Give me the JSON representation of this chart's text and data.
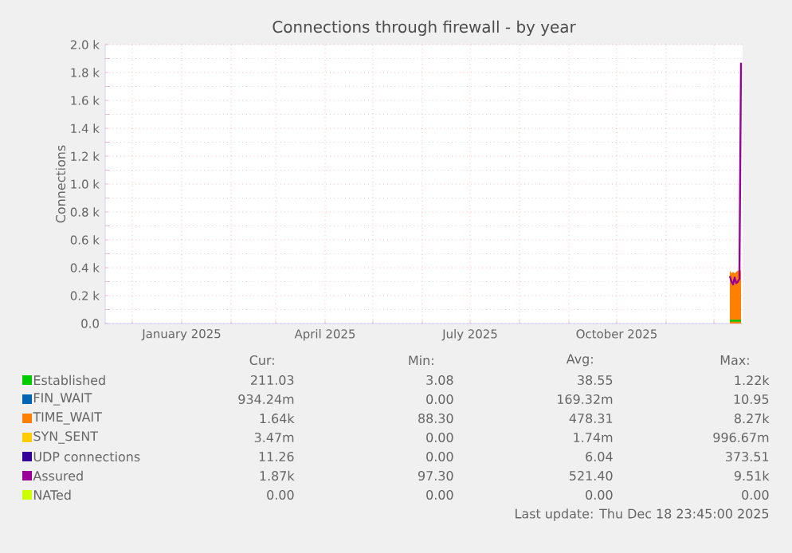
{
  "chart_data": {
    "type": "line",
    "title": "Connections through firewall - by year",
    "ylabel": "Connections",
    "x": [
      "2025-12-11",
      "2025-12-12",
      "2025-12-13",
      "2025-12-14",
      "2025-12-15",
      "2025-12-16",
      "2025-12-17",
      "2025-12-18"
    ],
    "xlim": [
      "2024-11-14",
      "2025-12-19"
    ],
    "xticks": [
      {
        "value": "2024-12-01",
        "label": null
      },
      {
        "value": "2025-01-01",
        "label": "January 2025"
      },
      {
        "value": "2025-02-01",
        "label": null
      },
      {
        "value": "2025-03-01",
        "label": null
      },
      {
        "value": "2025-04-01",
        "label": "April 2025"
      },
      {
        "value": "2025-05-01",
        "label": null
      },
      {
        "value": "2025-06-01",
        "label": null
      },
      {
        "value": "2025-07-01",
        "label": "July 2025"
      },
      {
        "value": "2025-08-01",
        "label": null
      },
      {
        "value": "2025-09-01",
        "label": null
      },
      {
        "value": "2025-10-01",
        "label": "October 2025"
      },
      {
        "value": "2025-11-01",
        "label": null
      },
      {
        "value": "2025-12-01",
        "label": null
      }
    ],
    "ylim": [
      0,
      2000
    ],
    "yticks": [
      {
        "value": 0,
        "label": "0.0"
      },
      {
        "value": 200,
        "label": "0.2 k"
      },
      {
        "value": 400,
        "label": "0.4 k"
      },
      {
        "value": 600,
        "label": "0.6 k"
      },
      {
        "value": 800,
        "label": "0.8 k"
      },
      {
        "value": 1000,
        "label": "1.0 k"
      },
      {
        "value": 1200,
        "label": "1.2 k"
      },
      {
        "value": 1400,
        "label": "1.4 k"
      },
      {
        "value": 1600,
        "label": "1.6 k"
      },
      {
        "value": 1800,
        "label": "1.8 k"
      },
      {
        "value": 2000,
        "label": "2.0 k"
      }
    ],
    "grid": true,
    "legend": "bottom",
    "series": [
      {
        "name": "Established",
        "color": "#00cc00",
        "values": [
          20,
          20,
          20,
          20,
          20,
          20,
          20,
          20
        ]
      },
      {
        "name": "FIN_WAIT",
        "color": "#0066b3",
        "values": [
          null,
          null,
          null,
          null,
          null,
          null,
          null,
          null
        ]
      },
      {
        "name": "TIME_WAIT",
        "color": "#ff8000",
        "type": "area",
        "values": [
          380,
          360,
          370,
          360,
          370,
          380,
          380,
          380
        ]
      },
      {
        "name": "SYN_SENT",
        "color": "#ffcc00",
        "values": [
          null,
          null,
          null,
          null,
          null,
          null,
          null,
          null
        ]
      },
      {
        "name": "UDP connections",
        "color": "#330099",
        "values": [
          null,
          null,
          null,
          null,
          null,
          null,
          null,
          null
        ]
      },
      {
        "name": "Assured",
        "color": "#990099",
        "values": [
          340,
          300,
          280,
          330,
          290,
          300,
          320,
          1870
        ]
      },
      {
        "name": "NATed",
        "color": "#ccff00",
        "values": [
          null,
          null,
          null,
          null,
          null,
          null,
          null,
          null
        ]
      }
    ],
    "annotations": [
      "Cur:",
      "Min:",
      "Avg:",
      "Max:",
      "211.03",
      "3.08",
      "38.55",
      "1.22k",
      "934.24m",
      "0.00",
      "169.32m",
      "10.95",
      "1.64k",
      "88.30",
      "478.31",
      "8.27k",
      "3.47m",
      "0.00",
      "1.74m",
      "996.67m",
      "11.26",
      "0.00",
      "6.04",
      "373.51",
      "1.87k",
      "97.30",
      "521.40",
      "9.51k",
      "0.00",
      "0.00",
      "0.00",
      "0.00",
      "Last update: Thu Dec 18 23:45:00 2025"
    ]
  }
}
